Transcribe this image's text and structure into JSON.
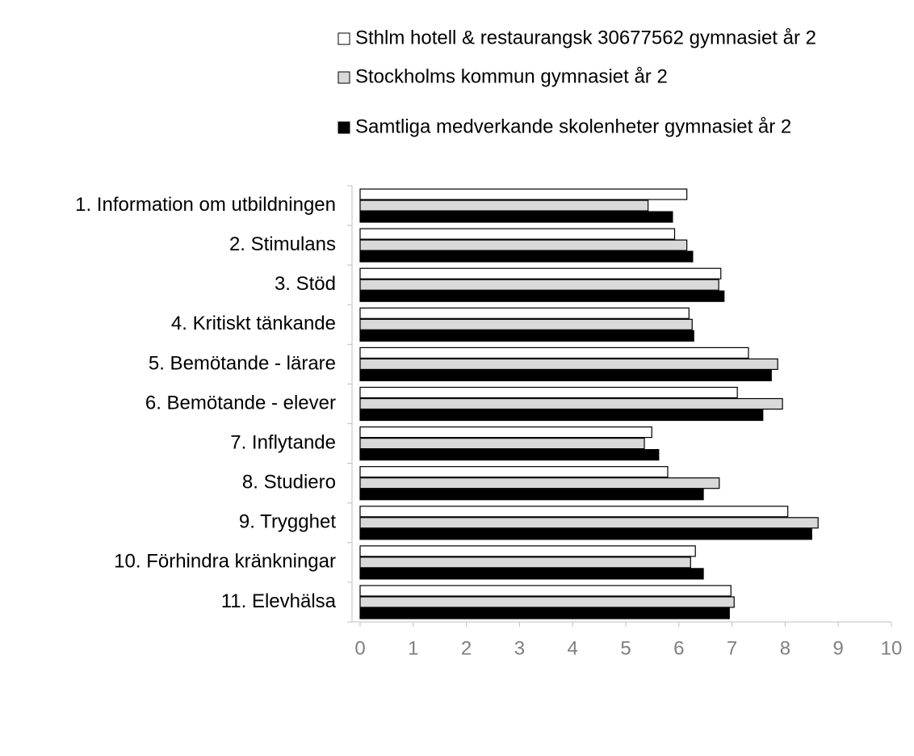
{
  "chart_data": {
    "type": "bar",
    "orientation": "horizontal",
    "categories": [
      "1. Information om utbildningen",
      "2. Stimulans",
      "3. Stöd",
      "4. Kritiskt tänkande",
      "5. Bemötande - lärare",
      "6. Bemötande - elever",
      "7. Inflytande",
      "8. Studiero",
      "9. Trygghet",
      "10. Förhindra kränkningar",
      "11. Elevhälsa"
    ],
    "series": [
      {
        "name": "Sthlm hotell & restaurangsk 30677562 gymnasiet år 2",
        "color": "#ffffff",
        "values": [
          6.15,
          5.92,
          6.79,
          6.19,
          7.31,
          7.1,
          5.49,
          5.79,
          8.05,
          6.31,
          6.98
        ]
      },
      {
        "name": "Stockholms kommun gymnasiet år 2",
        "color": "#d9d9d9",
        "values": [
          5.42,
          6.15,
          6.75,
          6.25,
          7.86,
          7.95,
          5.35,
          6.76,
          8.62,
          6.22,
          7.04
        ]
      },
      {
        "name": "Samtliga medverkande skolenheter gymnasiet år 2",
        "color": "#000000",
        "values": [
          5.88,
          6.26,
          6.85,
          6.28,
          7.74,
          7.58,
          5.62,
          6.46,
          8.5,
          6.46,
          6.95
        ]
      }
    ],
    "xlim": [
      0,
      10
    ],
    "xticks": [
      0,
      1,
      2,
      3,
      4,
      5,
      6,
      7,
      8,
      9,
      10
    ],
    "legend": "top"
  }
}
